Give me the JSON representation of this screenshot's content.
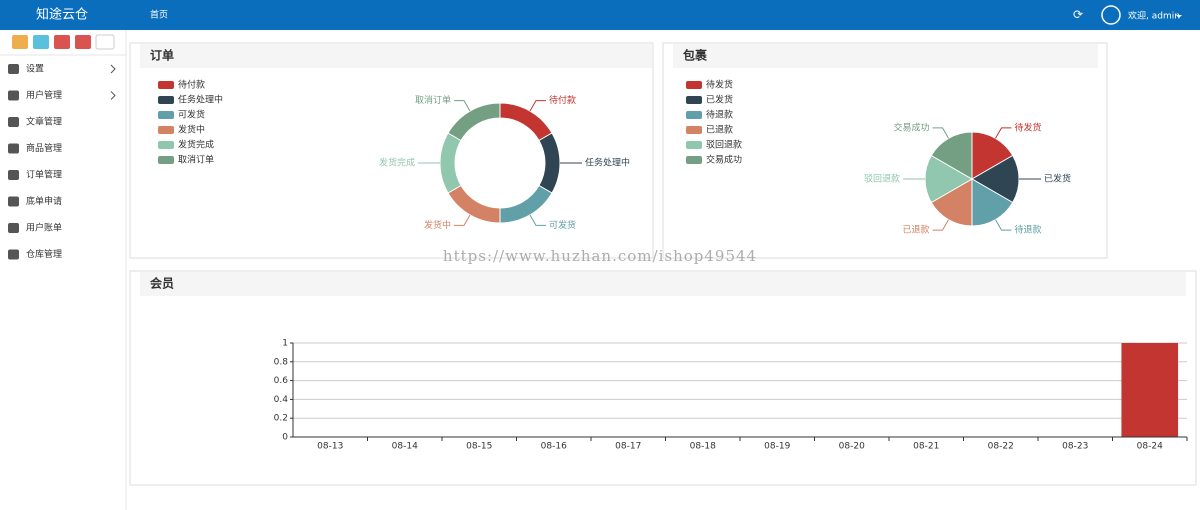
{
  "header": {
    "brand": "知途云仓",
    "nav": "首页",
    "user": "欢迎, admin"
  },
  "sidebar": {
    "menu": [
      "设置",
      "用户管理",
      "文章管理",
      "商品管理",
      "订单管理",
      "底单申请",
      "用户账单",
      "仓库管理"
    ]
  },
  "watermark": "https://www.huzhan.com/ishop49544",
  "chart_data": [
    {
      "type": "donut",
      "title": "订单",
      "categories": [
        "待付款",
        "任务处理中",
        "可发货",
        "发货中",
        "发货完成",
        "取消订单"
      ],
      "values": [
        1,
        1,
        1,
        1,
        1,
        1
      ],
      "colors": [
        "#c23531",
        "#2f4554",
        "#61a0a8",
        "#d48265",
        "#91c7ae",
        "#749f83"
      ]
    },
    {
      "type": "pie",
      "title": "包裹",
      "categories": [
        "待发货",
        "已发货",
        "待退款",
        "已退款",
        "驳回退款",
        "交易成功"
      ],
      "values": [
        1,
        1,
        1,
        1,
        1,
        1
      ],
      "colors": [
        "#c23531",
        "#2f4554",
        "#61a0a8",
        "#d48265",
        "#91c7ae",
        "#749f83"
      ]
    },
    {
      "type": "bar",
      "title": "会员",
      "categories": [
        "08-13",
        "08-14",
        "08-15",
        "08-16",
        "08-17",
        "08-18",
        "08-19",
        "08-20",
        "08-21",
        "08-22",
        "08-23",
        "08-24"
      ],
      "values": [
        0,
        0,
        0,
        0,
        0,
        0,
        0,
        0,
        0,
        0,
        0,
        1
      ],
      "color": "#c23531",
      "ylim": [
        0,
        1
      ],
      "yticks": [
        0,
        0.2,
        0.4,
        0.6,
        0.8,
        1
      ],
      "grid": true
    }
  ]
}
